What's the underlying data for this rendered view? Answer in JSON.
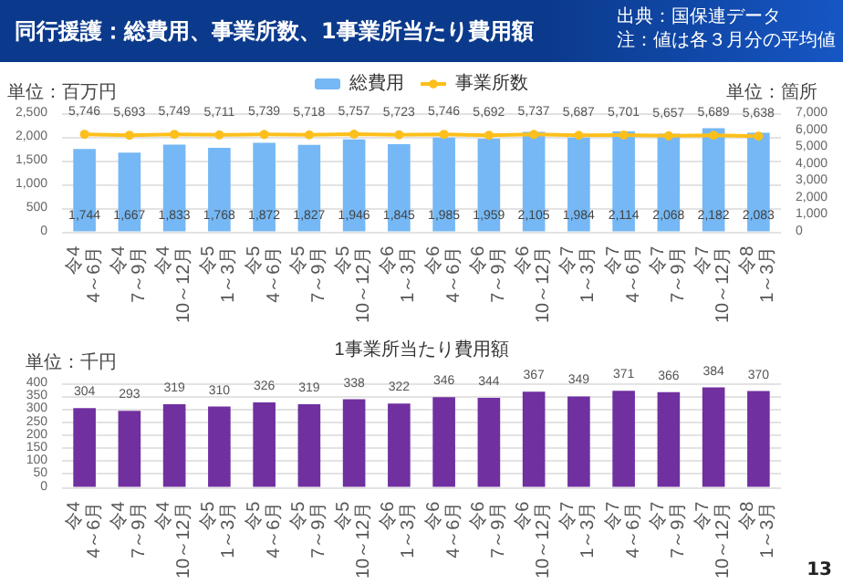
{
  "chart_data": [
    {
      "type": "bar",
      "title": "同行援護：総費用、事業所数、1事業所当たり費用額",
      "annotations": [
        "出典：国保連データ",
        "注：値は各３月分の平均値"
      ],
      "ylabel": "単位：百万円",
      "y2label": "単位：箇所",
      "categories": [
        "令4\n4～6月",
        "令4\n7～9月",
        "令4\n10～12月",
        "令5\n1～3月",
        "令5\n4～6月",
        "令5\n7～9月",
        "令5\n10～12月",
        "令6\n1～3月",
        "令6\n4～6月",
        "令6\n7～9月",
        "令6\n10～12月",
        "令7\n1～3月",
        "令7\n4～6月",
        "令7\n7～9月",
        "令7\n10～12月",
        "令8\n1～3月"
      ],
      "series": [
        {
          "name": "総費用",
          "color": "#75b8f5",
          "values": [
            1744,
            1667,
            1833,
            1768,
            1872,
            1827,
            1946,
            1845,
            1985,
            1959,
            2105,
            1984,
            2114,
            2068,
            2182,
            2083
          ],
          "value_labels": [
            "1,744",
            "1,667",
            "1,833",
            "1,768",
            "1,872",
            "1,827",
            "1,946",
            "1,845",
            "1,985",
            "1,959",
            "2,105",
            "1,984",
            "2,114",
            "2,068",
            "2,182",
            "2,083"
          ]
        },
        {
          "name": "事業所数",
          "type": "line",
          "axis": "y2",
          "color": "#fdbf1b",
          "values": [
            5746,
            5693,
            5749,
            5711,
            5739,
            5718,
            5757,
            5723,
            5746,
            5692,
            5737,
            5687,
            5701,
            5657,
            5689,
            5638
          ],
          "value_labels": [
            "5,746",
            "5,693",
            "5,749",
            "5,711",
            "5,739",
            "5,718",
            "5,757",
            "5,723",
            "5,746",
            "5,692",
            "5,737",
            "5,687",
            "5,701",
            "5,657",
            "5,689",
            "5,638"
          ]
        }
      ],
      "ylim": [
        0,
        2500
      ],
      "yticks": [
        0,
        500,
        {
          "value": 1000,
          "label": "1,000"
        },
        {
          "value": 1500,
          "label": "1,500"
        },
        {
          "value": 2000,
          "label": "2,000"
        },
        {
          "value": 2500,
          "label": "2,500"
        }
      ],
      "y2lim": [
        0,
        7000
      ],
      "y2ticks": [
        0,
        {
          "value": 1000,
          "label": "1,000"
        },
        {
          "value": 2000,
          "label": "2,000"
        },
        {
          "value": 3000,
          "label": "3,000"
        },
        {
          "value": 4000,
          "label": "4,000"
        },
        {
          "value": 5000,
          "label": "5,000"
        },
        {
          "value": 6000,
          "label": "6,000"
        },
        {
          "value": 7000,
          "label": "7,000"
        }
      ],
      "grid": "y",
      "legend": "top",
      "marker": "circle"
    },
    {
      "type": "bar",
      "title": "1事業所当たり費用額",
      "ylabel": "単位：千円",
      "annotations": [
        "13"
      ],
      "categories": [
        "令4\n4～6月",
        "令4\n7～9月",
        "令4\n10～12月",
        "令5\n1～3月",
        "令5\n4～6月",
        "令5\n7～9月",
        "令5\n10～12月",
        "令6\n1～3月",
        "令6\n4～6月",
        "令6\n7～9月",
        "令6\n10～12月",
        "令7\n1～3月",
        "令7\n4～6月",
        "令7\n7～9月",
        "令7\n10～12月",
        "令8\n1～3月"
      ],
      "values": [
        304,
        293,
        319,
        310,
        326,
        319,
        338,
        322,
        346,
        344,
        367,
        349,
        371,
        366,
        384,
        370
      ],
      "color": "#7030a0",
      "ylim": [
        0,
        400
      ],
      "yticks": [
        0,
        50,
        100,
        150,
        200,
        250,
        300,
        350,
        400
      ],
      "grid": "y",
      "data_labels": true
    }
  ]
}
